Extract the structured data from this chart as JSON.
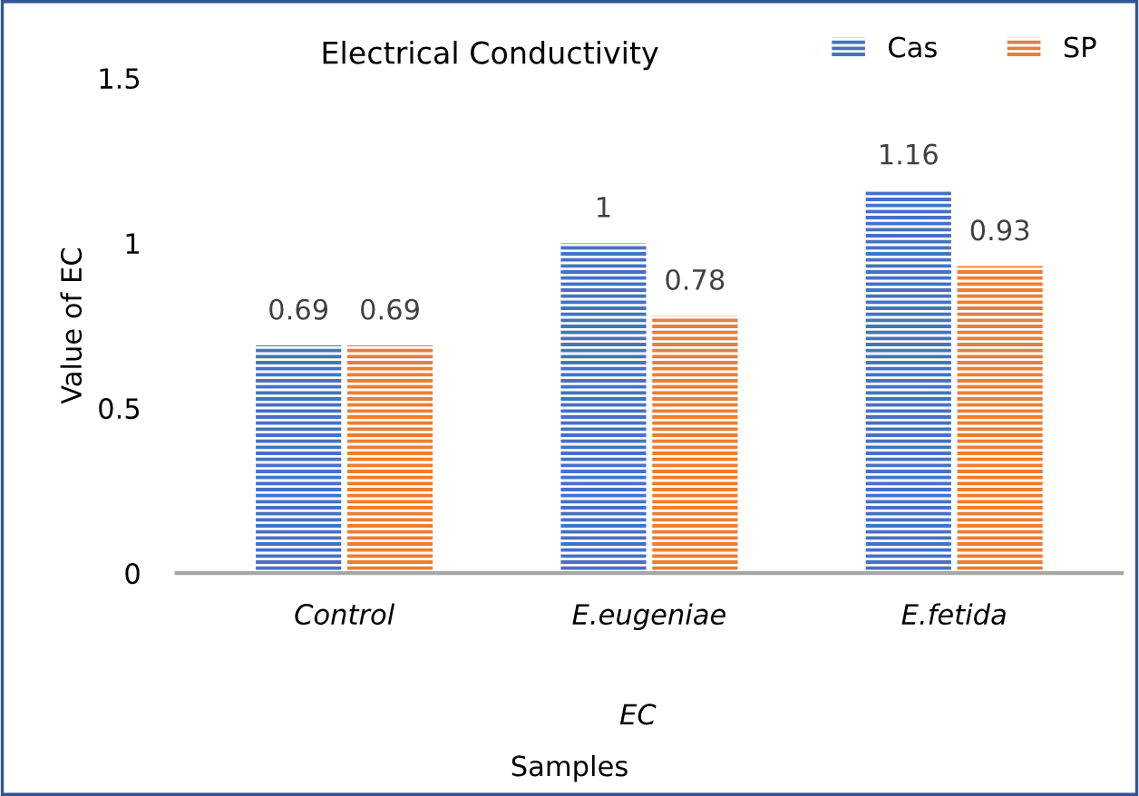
{
  "chart_data": {
    "type": "bar",
    "title": "Electrical Conductivity",
    "xlabel": "Samples",
    "ylabel": "Value of EC",
    "categories": [
      "Control",
      "E.eugeniae",
      "E.fetida"
    ],
    "series": [
      {
        "name": "Cas",
        "color": "#4472c4",
        "values": [
          0.69,
          1,
          1.16
        ]
      },
      {
        "name": "SP",
        "color": "#ed7d31",
        "values": [
          0.69,
          0.78,
          0.93
        ]
      }
    ],
    "annotations": [
      "EC"
    ],
    "ylim": [
      0,
      1.5
    ],
    "yticks": [
      0,
      0.5,
      1,
      1.5
    ],
    "grid": false,
    "legend": "top right",
    "data_labels": true
  }
}
